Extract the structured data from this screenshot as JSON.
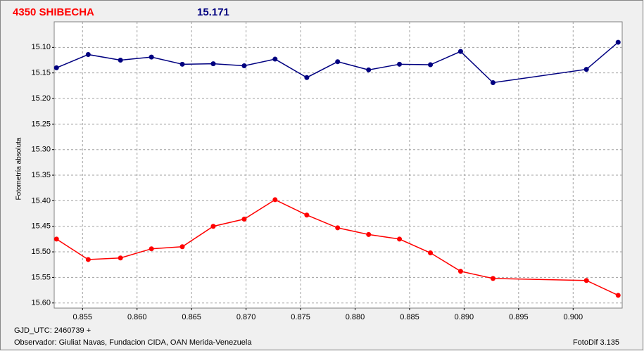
{
  "chart_data": {
    "type": "line",
    "title": "4350 SHIBECHA",
    "subtitle": "15.171",
    "y_label": "Fotometría absoluta",
    "annotations": [
      "GJD_UTC: 2460739 +",
      "Observador: Giuliat Navas, Fundacion CIDA, OAN  Merida-Venezuela",
      "FotoDif 3.135"
    ],
    "x": [
      0.85261,
      0.85552,
      0.85848,
      0.86132,
      0.86415,
      0.86699,
      0.86983,
      0.87266,
      0.87557,
      0.8784,
      0.88124,
      0.88407,
      0.88691,
      0.88968,
      0.89265,
      0.90122,
      0.90413
    ],
    "series": [
      {
        "color": "#000080",
        "values": [
          15.14,
          15.114,
          15.125,
          15.119,
          15.133,
          15.132,
          15.136,
          15.123,
          15.159,
          15.128,
          15.144,
          15.133,
          15.134,
          15.108,
          15.169,
          15.143,
          15.09
        ]
      },
      {
        "color": "#ff0000",
        "values": [
          15.475,
          15.515,
          15.512,
          15.494,
          15.49,
          15.45,
          15.436,
          15.398,
          15.428,
          15.453,
          15.466,
          15.475,
          15.502,
          15.538,
          15.552,
          15.556,
          15.585
        ]
      }
    ],
    "xlim": [
      0.8524,
      0.9045
    ],
    "xticks": [
      0.855,
      {
        "value": 0.86,
        "label": "0.860"
      },
      0.865,
      {
        "value": 0.87,
        "label": "0.870"
      },
      0.875,
      {
        "value": 0.88,
        "label": "0.880"
      },
      0.885,
      {
        "value": 0.89,
        "label": "0.890"
      },
      0.895,
      {
        "value": 0.9,
        "label": "0.900"
      }
    ],
    "ylim": [
      15.05,
      15.61
    ],
    "yticks": [
      {
        "value": 15.1,
        "label": "15.10"
      },
      15.15,
      {
        "value": 15.2,
        "label": "15.20"
      },
      15.25,
      {
        "value": 15.3,
        "label": "15.30"
      },
      15.35,
      {
        "value": 15.4,
        "label": "15.40"
      },
      15.45,
      {
        "value": 15.5,
        "label": "15.50"
      },
      15.55,
      {
        "value": 15.6,
        "label": "15.60"
      }
    ],
    "y_inverted": true,
    "grid": true
  }
}
